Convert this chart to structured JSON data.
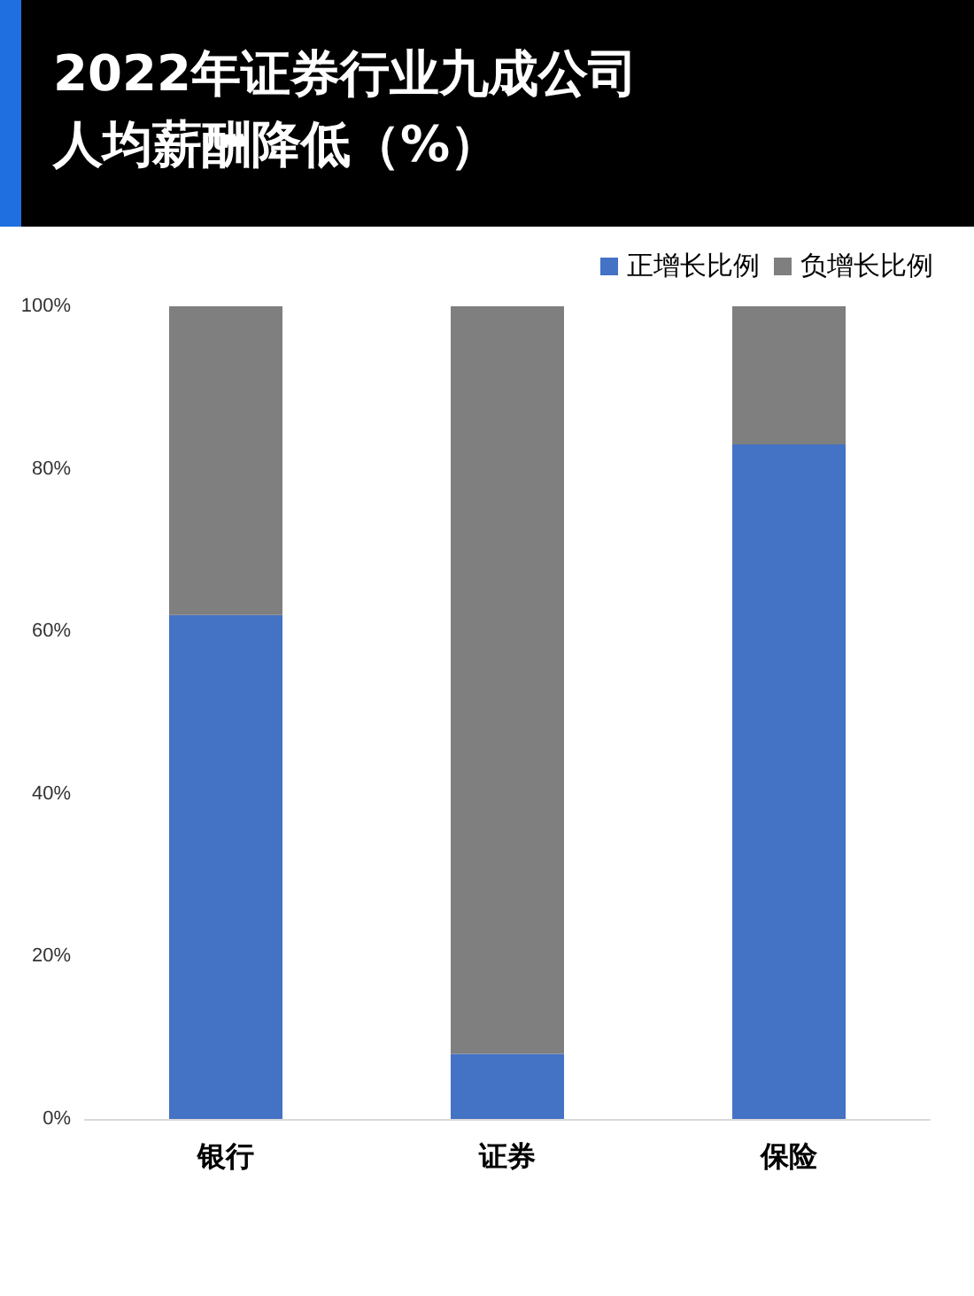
{
  "chart_data": {
    "type": "bar",
    "title": "2022年证券行业九成公司人均薪酬降低（%）",
    "categories": [
      "银行",
      "证券",
      "保险"
    ],
    "stacked": true,
    "series": [
      {
        "name": "正增长比例",
        "color": "#4472c4",
        "values": [
          62,
          8,
          83
        ]
      },
      {
        "name": "负增长比例",
        "color": "#7f7f7f",
        "values": [
          38,
          92,
          17
        ]
      }
    ],
    "ylim": [
      0,
      100
    ],
    "yticks": [
      {
        "value": 0,
        "label": "0%"
      },
      {
        "value": 20,
        "label": "20%"
      },
      {
        "value": 40,
        "label": "40%"
      },
      {
        "value": 60,
        "label": "60%"
      },
      {
        "value": 80,
        "label": "80%"
      },
      {
        "value": 100,
        "label": "100%"
      }
    ],
    "grid": false,
    "legend": "top right"
  }
}
